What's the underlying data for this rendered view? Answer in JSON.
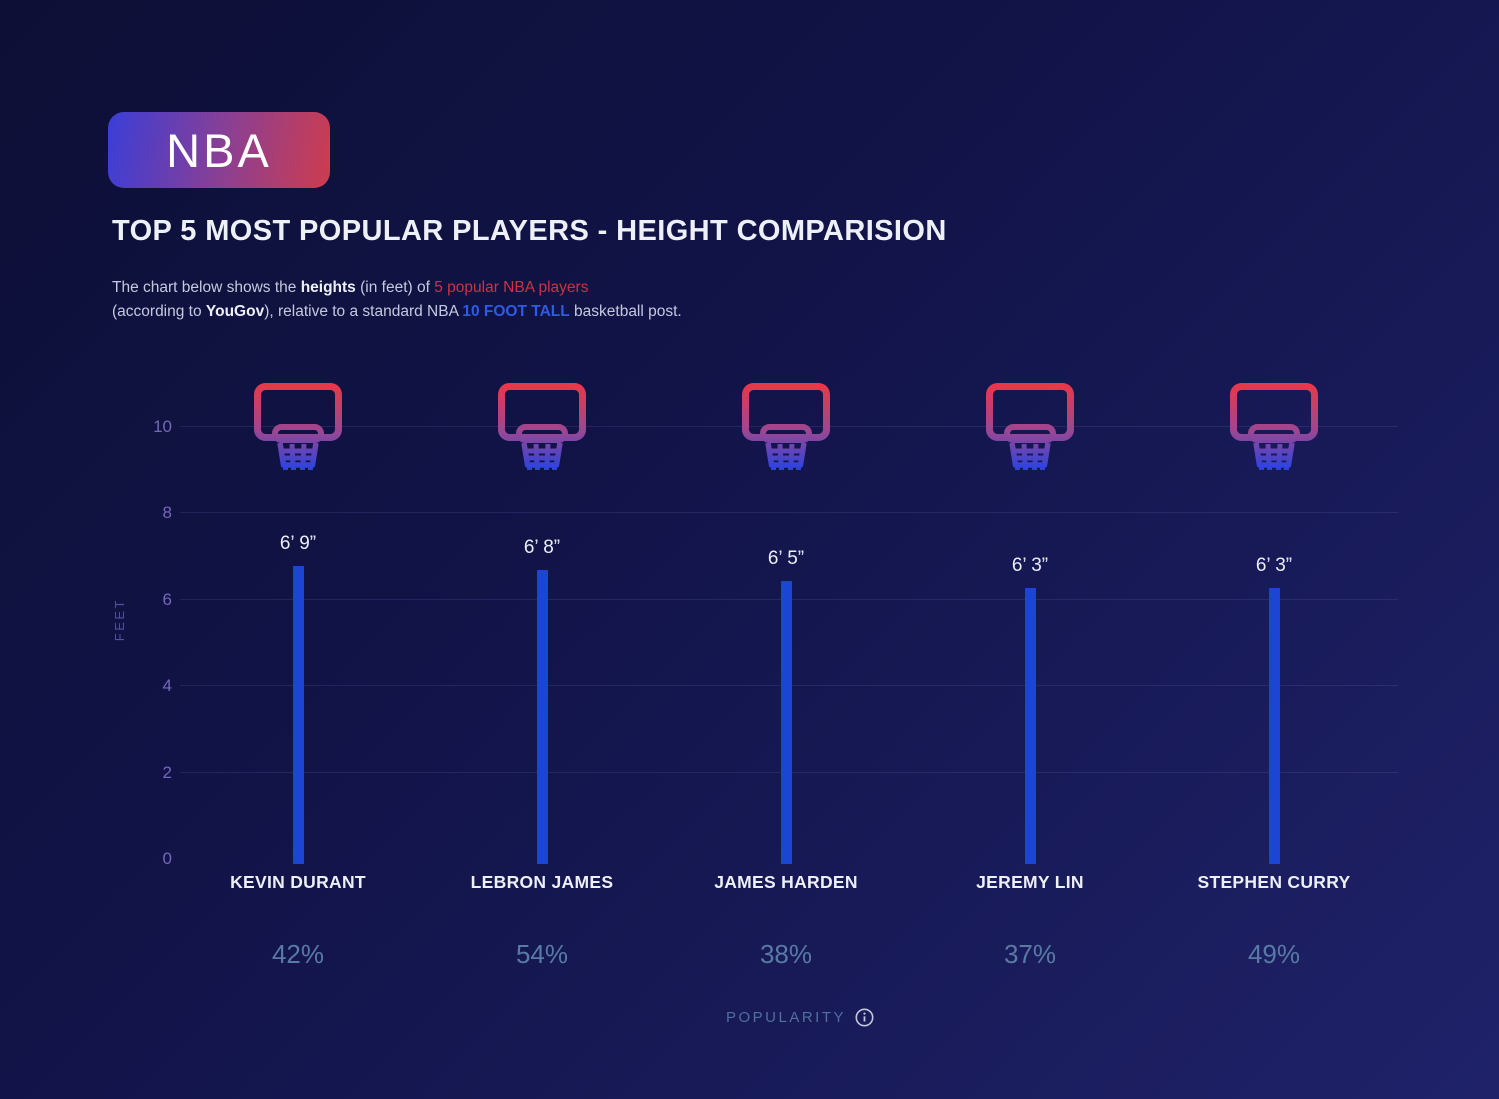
{
  "badge": {
    "label": "NBA",
    "gradient_start": "#3a3ed8",
    "gradient_end": "#ce3c4e"
  },
  "title": "TOP 5 MOST POPULAR PLAYERS - HEIGHT COMPARISION",
  "subtitle": {
    "line1": [
      {
        "text": "The chart below shows the ",
        "style": "normal"
      },
      {
        "text": "heights",
        "style": "bold"
      },
      {
        "text": " (in feet) of ",
        "style": "normal"
      },
      {
        "text": "5 popular NBA players",
        "style": "red"
      }
    ],
    "line2": [
      {
        "text": " (according to ",
        "style": "normal"
      },
      {
        "text": "YouGov",
        "style": "bold"
      },
      {
        "text": "), relative to a standard NBA ",
        "style": "normal"
      },
      {
        "text": "10 FOOT TALL",
        "style": "blue"
      },
      {
        "text": "  basketball post.",
        "style": "normal"
      }
    ]
  },
  "chart_data": {
    "type": "bar",
    "title": "Top 5 most popular NBA players - height comparison",
    "xlabel": "POPULARITY",
    "ylabel": "FEET",
    "yticks": [
      0,
      2,
      4,
      6,
      8,
      10
    ],
    "ylim": [
      0,
      11.5
    ],
    "grid": true,
    "hoop_height_ft": 10,
    "categories": [
      "KEVIN DURANT",
      "LEBRON JAMES",
      "JAMES HARDEN",
      "JEREMY LIN",
      "STEPHEN CURRY"
    ],
    "series": [
      {
        "name": "Height (feet)",
        "values": [
          6.75,
          6.667,
          6.417,
          6.25,
          6.25
        ],
        "labels": [
          "6’ 9”",
          "6’ 8”",
          "6’ 5”",
          "6’ 3”",
          "6’ 3”"
        ]
      },
      {
        "name": "Popularity",
        "values": [
          "42%",
          "54%",
          "38%",
          "37%",
          "49%"
        ]
      }
    ],
    "bar_color": "#1d45d4",
    "hoop_gradient": [
      "#e8384a",
      "#9a4793",
      "#2543e2"
    ],
    "legend": "none"
  },
  "footer": {
    "label": "POPULARITY",
    "icon": "info-icon"
  }
}
